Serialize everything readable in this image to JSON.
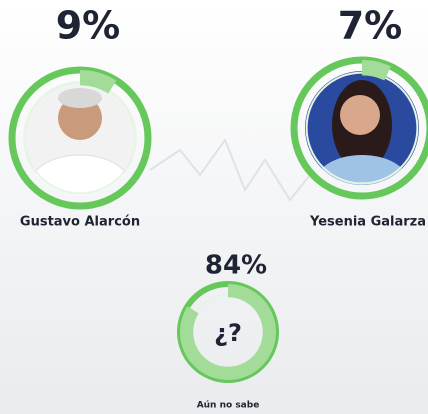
{
  "chart_data": {
    "type": "donut",
    "categories": [
      "Gustavo Alarcón",
      "Yesenia Galarza",
      "Aún no sabe"
    ],
    "values": [
      9,
      7,
      84
    ],
    "value_labels": [
      "9%",
      "7%",
      "84%"
    ],
    "center_text": "¿?",
    "color": "#66c75a",
    "highlight_color": "#a3dc98"
  }
}
